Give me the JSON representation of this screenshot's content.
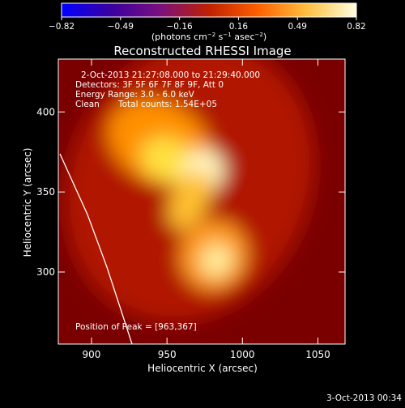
{
  "colorbar": {
    "tick_labels": [
      "−0.82",
      "−0.49",
      "−0.16",
      "0.16",
      "0.49",
      "0.82"
    ],
    "units_prefix": "(photons cm",
    "units_exp1": "−2",
    "units_mid1": " s",
    "units_exp2": "−1",
    "units_mid2": " asec",
    "units_exp3": "−2",
    "units_suffix": ")",
    "stops": [
      "#0000ff",
      "#3a00a0",
      "#7a1080",
      "#c02000",
      "#ff6000",
      "#ffc040",
      "#ffffe0"
    ]
  },
  "title": "Reconstructed RHESSI Image",
  "info": {
    "time_range": "2-Oct-2013 21:27:08.000 to 21:29:40.000",
    "detectors": "Detectors: 3F 5F 6F 7F 8F 9F, Att 0",
    "energy": "Energy Range: 3.0 - 6.0 keV",
    "clean": "Clean",
    "counts": "Total counts: 1.54E+05"
  },
  "peak_label": "Position of Peak = [963,367]",
  "axes": {
    "xlabel": "Heliocentric X (arcsec)",
    "ylabel": "Heliocentric Y (arcsec)",
    "xticks": [
      900,
      950,
      1000,
      1050
    ],
    "yticks": [
      300,
      350,
      400
    ],
    "xlim": [
      878,
      1068
    ],
    "ylim": [
      255,
      433
    ]
  },
  "footer_date": "3-Oct-2013 00:34",
  "image": {
    "background": "#7a0000",
    "blobs": [
      {
        "x": 960,
        "y": 355,
        "rx": 80,
        "ry": 90,
        "color": "#b01800"
      },
      {
        "x": 930,
        "y": 370,
        "rx": 35,
        "ry": 25,
        "color": "#ff9000"
      },
      {
        "x": 940,
        "y": 362,
        "rx": 18,
        "ry": 14,
        "color": "#ffe040"
      },
      {
        "x": 965,
        "y": 365,
        "rx": 14,
        "ry": 14,
        "color": "#fff6c0"
      },
      {
        "x": 965,
        "y": 345,
        "rx": 12,
        "ry": 20,
        "color": "#ffc030"
      },
      {
        "x": 995,
        "y": 320,
        "rx": 22,
        "ry": 22,
        "color": "#ff9c20"
      },
      {
        "x": 998,
        "y": 318,
        "rx": 10,
        "ry": 10,
        "color": "#fff0a0"
      }
    ]
  }
}
